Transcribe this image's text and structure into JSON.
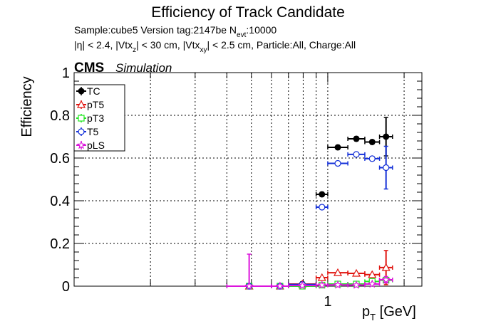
{
  "chart_data": {
    "type": "scatter",
    "title": "Efficiency of Track Candidate",
    "subtitle1_parts": [
      "Sample:cube5   Version tag:2147be  N",
      "evt",
      ":10000"
    ],
    "subtitle2_parts": [
      "|η| < 2.4, |Vtx",
      "z",
      "| < 30 cm, |Vtx",
      "xy",
      "| < 2.5 cm, Particle:All, Charge:All"
    ],
    "cms_label": "CMS",
    "simulation_label": "Simulation",
    "ylabel": "Efficiency",
    "xlabel_parts": [
      "p",
      "T",
      " [GeV]"
    ],
    "xscale": "log",
    "xlim": [
      0.1,
      2.35
    ],
    "ylim": [
      0,
      1.0
    ],
    "grid": true,
    "legend_position": "top-left",
    "x_tick_labels": [
      {
        "value": 1,
        "label": "1"
      }
    ],
    "y_tick_labels": [
      {
        "value": 0,
        "label": "0"
      },
      {
        "value": 0.2,
        "label": "0.2"
      },
      {
        "value": 0.4,
        "label": "0.4"
      },
      {
        "value": 0.6,
        "label": "0.6"
      },
      {
        "value": 0.8,
        "label": "0.8"
      },
      {
        "value": 1,
        "label": "1"
      }
    ],
    "series": [
      {
        "name": "TC",
        "color": "#000000",
        "marker": "filled-circle",
        "points": [
          {
            "xlo": 0.4,
            "xhi": 0.6,
            "y": 0.0,
            "elo": 0.0,
            "ehi": 0.0
          },
          {
            "xlo": 0.6,
            "xhi": 0.7,
            "y": 0.0,
            "elo": 0.0,
            "ehi": 0.0
          },
          {
            "xlo": 0.7,
            "xhi": 0.9,
            "y": 0.01,
            "elo": 0.01,
            "ehi": 0.01
          },
          {
            "xlo": 0.9,
            "xhi": 1.0,
            "y": 0.43,
            "elo": 0.01,
            "ehi": 0.01
          },
          {
            "xlo": 1.0,
            "xhi": 1.2,
            "y": 0.65,
            "elo": 0.01,
            "ehi": 0.01
          },
          {
            "xlo": 1.2,
            "xhi": 1.4,
            "y": 0.69,
            "elo": 0.01,
            "ehi": 0.01
          },
          {
            "xlo": 1.4,
            "xhi": 1.6,
            "y": 0.675,
            "elo": 0.01,
            "ehi": 0.01
          },
          {
            "xlo": 1.6,
            "xhi": 1.8,
            "y": 0.7,
            "elo": 0.09,
            "ehi": 0.09
          }
        ]
      },
      {
        "name": "pT5",
        "color": "#e0140f",
        "marker": "open-triangle",
        "points": [
          {
            "xlo": 0.4,
            "xhi": 0.6,
            "y": 0.0,
            "elo": 0.0,
            "ehi": 0.0
          },
          {
            "xlo": 0.6,
            "xhi": 0.7,
            "y": 0.0,
            "elo": 0.0,
            "ehi": 0.0
          },
          {
            "xlo": 0.7,
            "xhi": 0.9,
            "y": 0.01,
            "elo": 0.0,
            "ehi": 0.0
          },
          {
            "xlo": 0.9,
            "xhi": 1.0,
            "y": 0.04,
            "elo": 0.0,
            "ehi": 0.0
          },
          {
            "xlo": 1.0,
            "xhi": 1.2,
            "y": 0.063,
            "elo": 0.0,
            "ehi": 0.0
          },
          {
            "xlo": 1.2,
            "xhi": 1.4,
            "y": 0.06,
            "elo": 0.0,
            "ehi": 0.0
          },
          {
            "xlo": 1.4,
            "xhi": 1.6,
            "y": 0.054,
            "elo": 0.0,
            "ehi": 0.0
          },
          {
            "xlo": 1.6,
            "xhi": 1.8,
            "y": 0.087,
            "elo": 0.08,
            "ehi": 0.08
          }
        ]
      },
      {
        "name": "pT3",
        "color": "#1ee61e",
        "marker": "open-square",
        "points": [
          {
            "xlo": 0.4,
            "xhi": 0.6,
            "y": 0.0,
            "elo": 0.0,
            "ehi": 0.0
          },
          {
            "xlo": 0.6,
            "xhi": 0.7,
            "y": 0.0,
            "elo": 0.0,
            "ehi": 0.0
          },
          {
            "xlo": 0.7,
            "xhi": 0.9,
            "y": 0.0,
            "elo": 0.0,
            "ehi": 0.0
          },
          {
            "xlo": 0.9,
            "xhi": 1.0,
            "y": 0.005,
            "elo": 0.0,
            "ehi": 0.0
          },
          {
            "xlo": 1.0,
            "xhi": 1.2,
            "y": 0.01,
            "elo": 0.0,
            "ehi": 0.0
          },
          {
            "xlo": 1.2,
            "xhi": 1.4,
            "y": 0.01,
            "elo": 0.0,
            "ehi": 0.0
          },
          {
            "xlo": 1.4,
            "xhi": 1.6,
            "y": 0.022,
            "elo": 0.0,
            "ehi": 0.0
          },
          {
            "xlo": 1.6,
            "xhi": 1.8,
            "y": 0.028,
            "elo": 0.0,
            "ehi": 0.0
          }
        ]
      },
      {
        "name": "T5",
        "color": "#1430d8",
        "marker": "open-circle",
        "points": [
          {
            "xlo": 0.4,
            "xhi": 0.6,
            "y": 0.0,
            "elo": 0.0,
            "ehi": 0.0
          },
          {
            "xlo": 0.6,
            "xhi": 0.7,
            "y": 0.0,
            "elo": 0.0,
            "ehi": 0.0
          },
          {
            "xlo": 0.7,
            "xhi": 0.9,
            "y": 0.008,
            "elo": 0.0,
            "ehi": 0.0
          },
          {
            "xlo": 0.9,
            "xhi": 1.0,
            "y": 0.37,
            "elo": 0.01,
            "ehi": 0.01
          },
          {
            "xlo": 1.0,
            "xhi": 1.2,
            "y": 0.575,
            "elo": 0.01,
            "ehi": 0.01
          },
          {
            "xlo": 1.2,
            "xhi": 1.4,
            "y": 0.617,
            "elo": 0.01,
            "ehi": 0.01
          },
          {
            "xlo": 1.4,
            "xhi": 1.6,
            "y": 0.597,
            "elo": 0.01,
            "ehi": 0.01
          },
          {
            "xlo": 1.6,
            "xhi": 1.8,
            "y": 0.555,
            "elo": 0.1,
            "ehi": 0.1
          }
        ]
      },
      {
        "name": "pLS",
        "color": "#dc14dc",
        "marker": "open-star",
        "points": [
          {
            "xlo": 0.4,
            "xhi": 0.6,
            "y": 0.0,
            "elo": 0.0,
            "ehi": 0.15
          },
          {
            "xlo": 0.6,
            "xhi": 0.7,
            "y": 0.0,
            "elo": 0.0,
            "ehi": 0.0
          },
          {
            "xlo": 0.7,
            "xhi": 0.9,
            "y": 0.003,
            "elo": 0.0,
            "ehi": 0.0
          },
          {
            "xlo": 0.9,
            "xhi": 1.0,
            "y": 0.005,
            "elo": 0.0,
            "ehi": 0.0
          },
          {
            "xlo": 1.0,
            "xhi": 1.2,
            "y": 0.006,
            "elo": 0.0,
            "ehi": 0.0
          },
          {
            "xlo": 1.2,
            "xhi": 1.4,
            "y": 0.005,
            "elo": 0.0,
            "ehi": 0.0
          },
          {
            "xlo": 1.4,
            "xhi": 1.6,
            "y": 0.01,
            "elo": 0.0,
            "ehi": 0.0
          },
          {
            "xlo": 1.6,
            "xhi": 1.8,
            "y": 0.03,
            "elo": 0.015,
            "ehi": 0.015
          }
        ]
      }
    ]
  }
}
